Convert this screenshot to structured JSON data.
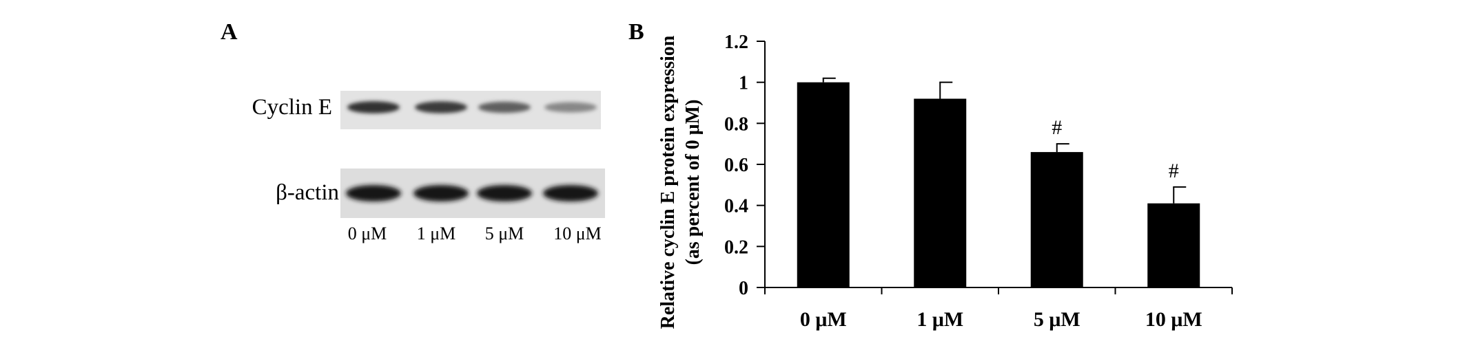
{
  "panel_a": {
    "letter": "A",
    "rows": [
      {
        "label": "Cyclin E"
      },
      {
        "label": "β-actin"
      }
    ],
    "lanes": [
      "0 μM",
      "1 μM",
      "5 μM",
      "10 μM"
    ],
    "band_intensity": {
      "cyclin_e": [
        0.92,
        0.88,
        0.7,
        0.5
      ],
      "beta_actin": [
        1.0,
        1.0,
        1.0,
        1.0
      ]
    }
  },
  "panel_b": {
    "letter": "B"
  },
  "chart_data": {
    "type": "bar",
    "title": "",
    "xlabel": "",
    "ylabel_line1": "Relative cyclin E protein expression",
    "ylabel_line2": "(as percent of 0 μM)",
    "categories": [
      "0 μM",
      "1 μM",
      "5 μM",
      "10 μM"
    ],
    "values": [
      1.0,
      0.92,
      0.66,
      0.41
    ],
    "errors": [
      0.02,
      0.08,
      0.04,
      0.08
    ],
    "annotations": [
      "",
      "",
      "#",
      "#"
    ],
    "ylim": [
      0,
      1.2
    ],
    "yticks": [
      0,
      0.2,
      0.4,
      0.6,
      0.8,
      1,
      1.2
    ],
    "ytick_labels": [
      "0",
      "0.2",
      "0.4",
      "0.6",
      "0.8",
      "1",
      "1.2"
    ],
    "bar_color": "#000000",
    "grid": false,
    "legend": "none"
  }
}
